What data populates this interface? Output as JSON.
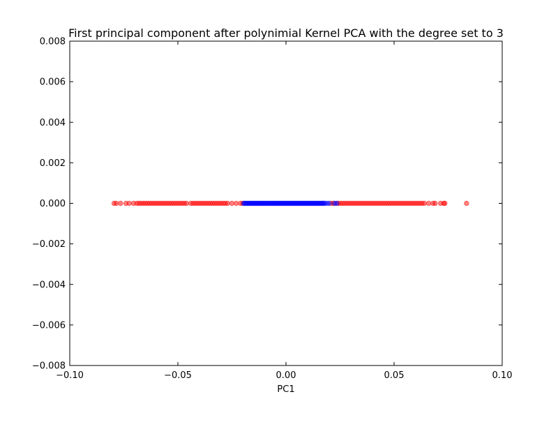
{
  "chart_data": {
    "type": "scatter",
    "title": "First principal component after polynimial  Kernel PCA with the degree set to 3",
    "xlabel": "PC1",
    "ylabel": "",
    "xlim": [
      -0.1,
      0.1
    ],
    "ylim": [
      -0.008,
      0.008
    ],
    "x_ticks": [
      {
        "value": -0.1,
        "label": "−0.10"
      },
      {
        "value": -0.05,
        "label": "−0.05"
      },
      {
        "value": 0.0,
        "label": "0.00"
      },
      {
        "value": 0.05,
        "label": "0.05"
      },
      {
        "value": 0.1,
        "label": "0.10"
      }
    ],
    "y_ticks": [
      {
        "value": 0.008,
        "label": "0.008"
      },
      {
        "value": 0.006,
        "label": "0.006"
      },
      {
        "value": 0.004,
        "label": "0.004"
      },
      {
        "value": 0.002,
        "label": "0.002"
      },
      {
        "value": 0.0,
        "label": "0.000"
      },
      {
        "value": -0.002,
        "label": "−0.002"
      },
      {
        "value": -0.004,
        "label": "−0.004"
      },
      {
        "value": -0.006,
        "label": "−0.006"
      },
      {
        "value": -0.008,
        "label": "−0.008"
      }
    ],
    "grid": false,
    "series": [
      {
        "color": "#ff0000",
        "opacity": 0.5,
        "points": [
          [
            -0.0795,
            0
          ],
          [
            -0.0785,
            0
          ],
          [
            -0.0765,
            0
          ],
          [
            -0.074,
            0
          ],
          [
            -0.0725,
            0
          ],
          [
            -0.0705,
            0
          ],
          [
            -0.069,
            0
          ],
          [
            -0.068,
            0
          ],
          [
            -0.067,
            0
          ],
          [
            -0.066,
            0
          ],
          [
            -0.065,
            0
          ],
          [
            -0.064,
            0
          ],
          [
            -0.063,
            0
          ],
          [
            -0.062,
            0
          ],
          [
            -0.061,
            0
          ],
          [
            -0.06,
            0
          ],
          [
            -0.059,
            0
          ],
          [
            -0.058,
            0
          ],
          [
            -0.057,
            0
          ],
          [
            -0.056,
            0
          ],
          [
            -0.055,
            0
          ],
          [
            -0.054,
            0
          ],
          [
            -0.053,
            0
          ],
          [
            -0.052,
            0
          ],
          [
            -0.051,
            0
          ],
          [
            -0.05,
            0
          ],
          [
            -0.049,
            0
          ],
          [
            -0.048,
            0
          ],
          [
            -0.047,
            0
          ],
          [
            -0.046,
            0
          ],
          [
            -0.044,
            0
          ],
          [
            -0.043,
            0
          ],
          [
            -0.042,
            0
          ],
          [
            -0.041,
            0
          ],
          [
            -0.04,
            0
          ],
          [
            -0.039,
            0
          ],
          [
            -0.038,
            0
          ],
          [
            -0.037,
            0
          ],
          [
            -0.036,
            0
          ],
          [
            -0.035,
            0
          ],
          [
            -0.034,
            0
          ],
          [
            -0.033,
            0
          ],
          [
            -0.032,
            0
          ],
          [
            -0.031,
            0
          ],
          [
            -0.03,
            0
          ],
          [
            -0.029,
            0
          ],
          [
            -0.028,
            0
          ],
          [
            -0.027,
            0
          ],
          [
            -0.025,
            0
          ],
          [
            -0.023,
            0
          ],
          [
            -0.021,
            0
          ],
          [
            -0.02,
            0
          ],
          [
            0.021,
            0
          ],
          [
            0.022,
            0
          ],
          [
            0.024,
            0
          ],
          [
            0.025,
            0
          ],
          [
            0.026,
            0
          ],
          [
            0.027,
            0
          ],
          [
            0.028,
            0
          ],
          [
            0.029,
            0
          ],
          [
            0.03,
            0
          ],
          [
            0.031,
            0
          ],
          [
            0.032,
            0
          ],
          [
            0.033,
            0
          ],
          [
            0.034,
            0
          ],
          [
            0.035,
            0
          ],
          [
            0.036,
            0
          ],
          [
            0.037,
            0
          ],
          [
            0.038,
            0
          ],
          [
            0.039,
            0
          ],
          [
            0.04,
            0
          ],
          [
            0.041,
            0
          ],
          [
            0.042,
            0
          ],
          [
            0.043,
            0
          ],
          [
            0.044,
            0
          ],
          [
            0.045,
            0
          ],
          [
            0.046,
            0
          ],
          [
            0.047,
            0
          ],
          [
            0.048,
            0
          ],
          [
            0.049,
            0
          ],
          [
            0.05,
            0
          ],
          [
            0.051,
            0
          ],
          [
            0.052,
            0
          ],
          [
            0.053,
            0
          ],
          [
            0.054,
            0
          ],
          [
            0.055,
            0
          ],
          [
            0.056,
            0
          ],
          [
            0.057,
            0
          ],
          [
            0.058,
            0
          ],
          [
            0.059,
            0
          ],
          [
            0.06,
            0
          ],
          [
            0.061,
            0
          ],
          [
            0.062,
            0
          ],
          [
            0.063,
            0
          ],
          [
            0.064,
            0
          ],
          [
            0.066,
            0
          ],
          [
            0.068,
            0
          ],
          [
            0.069,
            0
          ],
          [
            0.0715,
            0
          ],
          [
            0.073,
            0
          ],
          [
            0.0735,
            0
          ],
          [
            0.0835,
            0
          ]
        ]
      },
      {
        "color": "#0000ff",
        "opacity": 0.5,
        "points": [
          [
            -0.0195,
            0
          ],
          [
            -0.019,
            0
          ],
          [
            -0.0185,
            0
          ],
          [
            -0.018,
            0
          ],
          [
            -0.0175,
            0
          ],
          [
            -0.017,
            0
          ],
          [
            -0.0165,
            0
          ],
          [
            -0.016,
            0
          ],
          [
            -0.0155,
            0
          ],
          [
            -0.015,
            0
          ],
          [
            -0.0145,
            0
          ],
          [
            -0.014,
            0
          ],
          [
            -0.0135,
            0
          ],
          [
            -0.013,
            0
          ],
          [
            -0.0125,
            0
          ],
          [
            -0.012,
            0
          ],
          [
            -0.0115,
            0
          ],
          [
            -0.011,
            0
          ],
          [
            -0.0105,
            0
          ],
          [
            -0.01,
            0
          ],
          [
            -0.0095,
            0
          ],
          [
            -0.009,
            0
          ],
          [
            -0.0085,
            0
          ],
          [
            -0.008,
            0
          ],
          [
            -0.0075,
            0
          ],
          [
            -0.007,
            0
          ],
          [
            -0.0065,
            0
          ],
          [
            -0.006,
            0
          ],
          [
            -0.0055,
            0
          ],
          [
            -0.005,
            0
          ],
          [
            -0.0045,
            0
          ],
          [
            -0.004,
            0
          ],
          [
            -0.0035,
            0
          ],
          [
            -0.003,
            0
          ],
          [
            -0.0025,
            0
          ],
          [
            -0.002,
            0
          ],
          [
            -0.0015,
            0
          ],
          [
            -0.001,
            0
          ],
          [
            -0.0005,
            0
          ],
          [
            0.0,
            0
          ],
          [
            0.0005,
            0
          ],
          [
            0.001,
            0
          ],
          [
            0.0015,
            0
          ],
          [
            0.002,
            0
          ],
          [
            0.0025,
            0
          ],
          [
            0.003,
            0
          ],
          [
            0.0035,
            0
          ],
          [
            0.004,
            0
          ],
          [
            0.0045,
            0
          ],
          [
            0.005,
            0
          ],
          [
            0.0055,
            0
          ],
          [
            0.006,
            0
          ],
          [
            0.0065,
            0
          ],
          [
            0.007,
            0
          ],
          [
            0.0075,
            0
          ],
          [
            0.008,
            0
          ],
          [
            0.0085,
            0
          ],
          [
            0.009,
            0
          ],
          [
            0.0095,
            0
          ],
          [
            0.01,
            0
          ],
          [
            0.0105,
            0
          ],
          [
            0.011,
            0
          ],
          [
            0.0115,
            0
          ],
          [
            0.012,
            0
          ],
          [
            0.0125,
            0
          ],
          [
            0.013,
            0
          ],
          [
            0.0135,
            0
          ],
          [
            0.014,
            0
          ],
          [
            0.0145,
            0
          ],
          [
            0.015,
            0
          ],
          [
            0.0155,
            0
          ],
          [
            0.016,
            0
          ],
          [
            0.0165,
            0
          ],
          [
            0.017,
            0
          ],
          [
            0.0175,
            0
          ],
          [
            0.018,
            0
          ],
          [
            0.019,
            0
          ],
          [
            0.02,
            0
          ],
          [
            0.0225,
            0
          ],
          [
            0.0235,
            0
          ]
        ]
      }
    ]
  }
}
